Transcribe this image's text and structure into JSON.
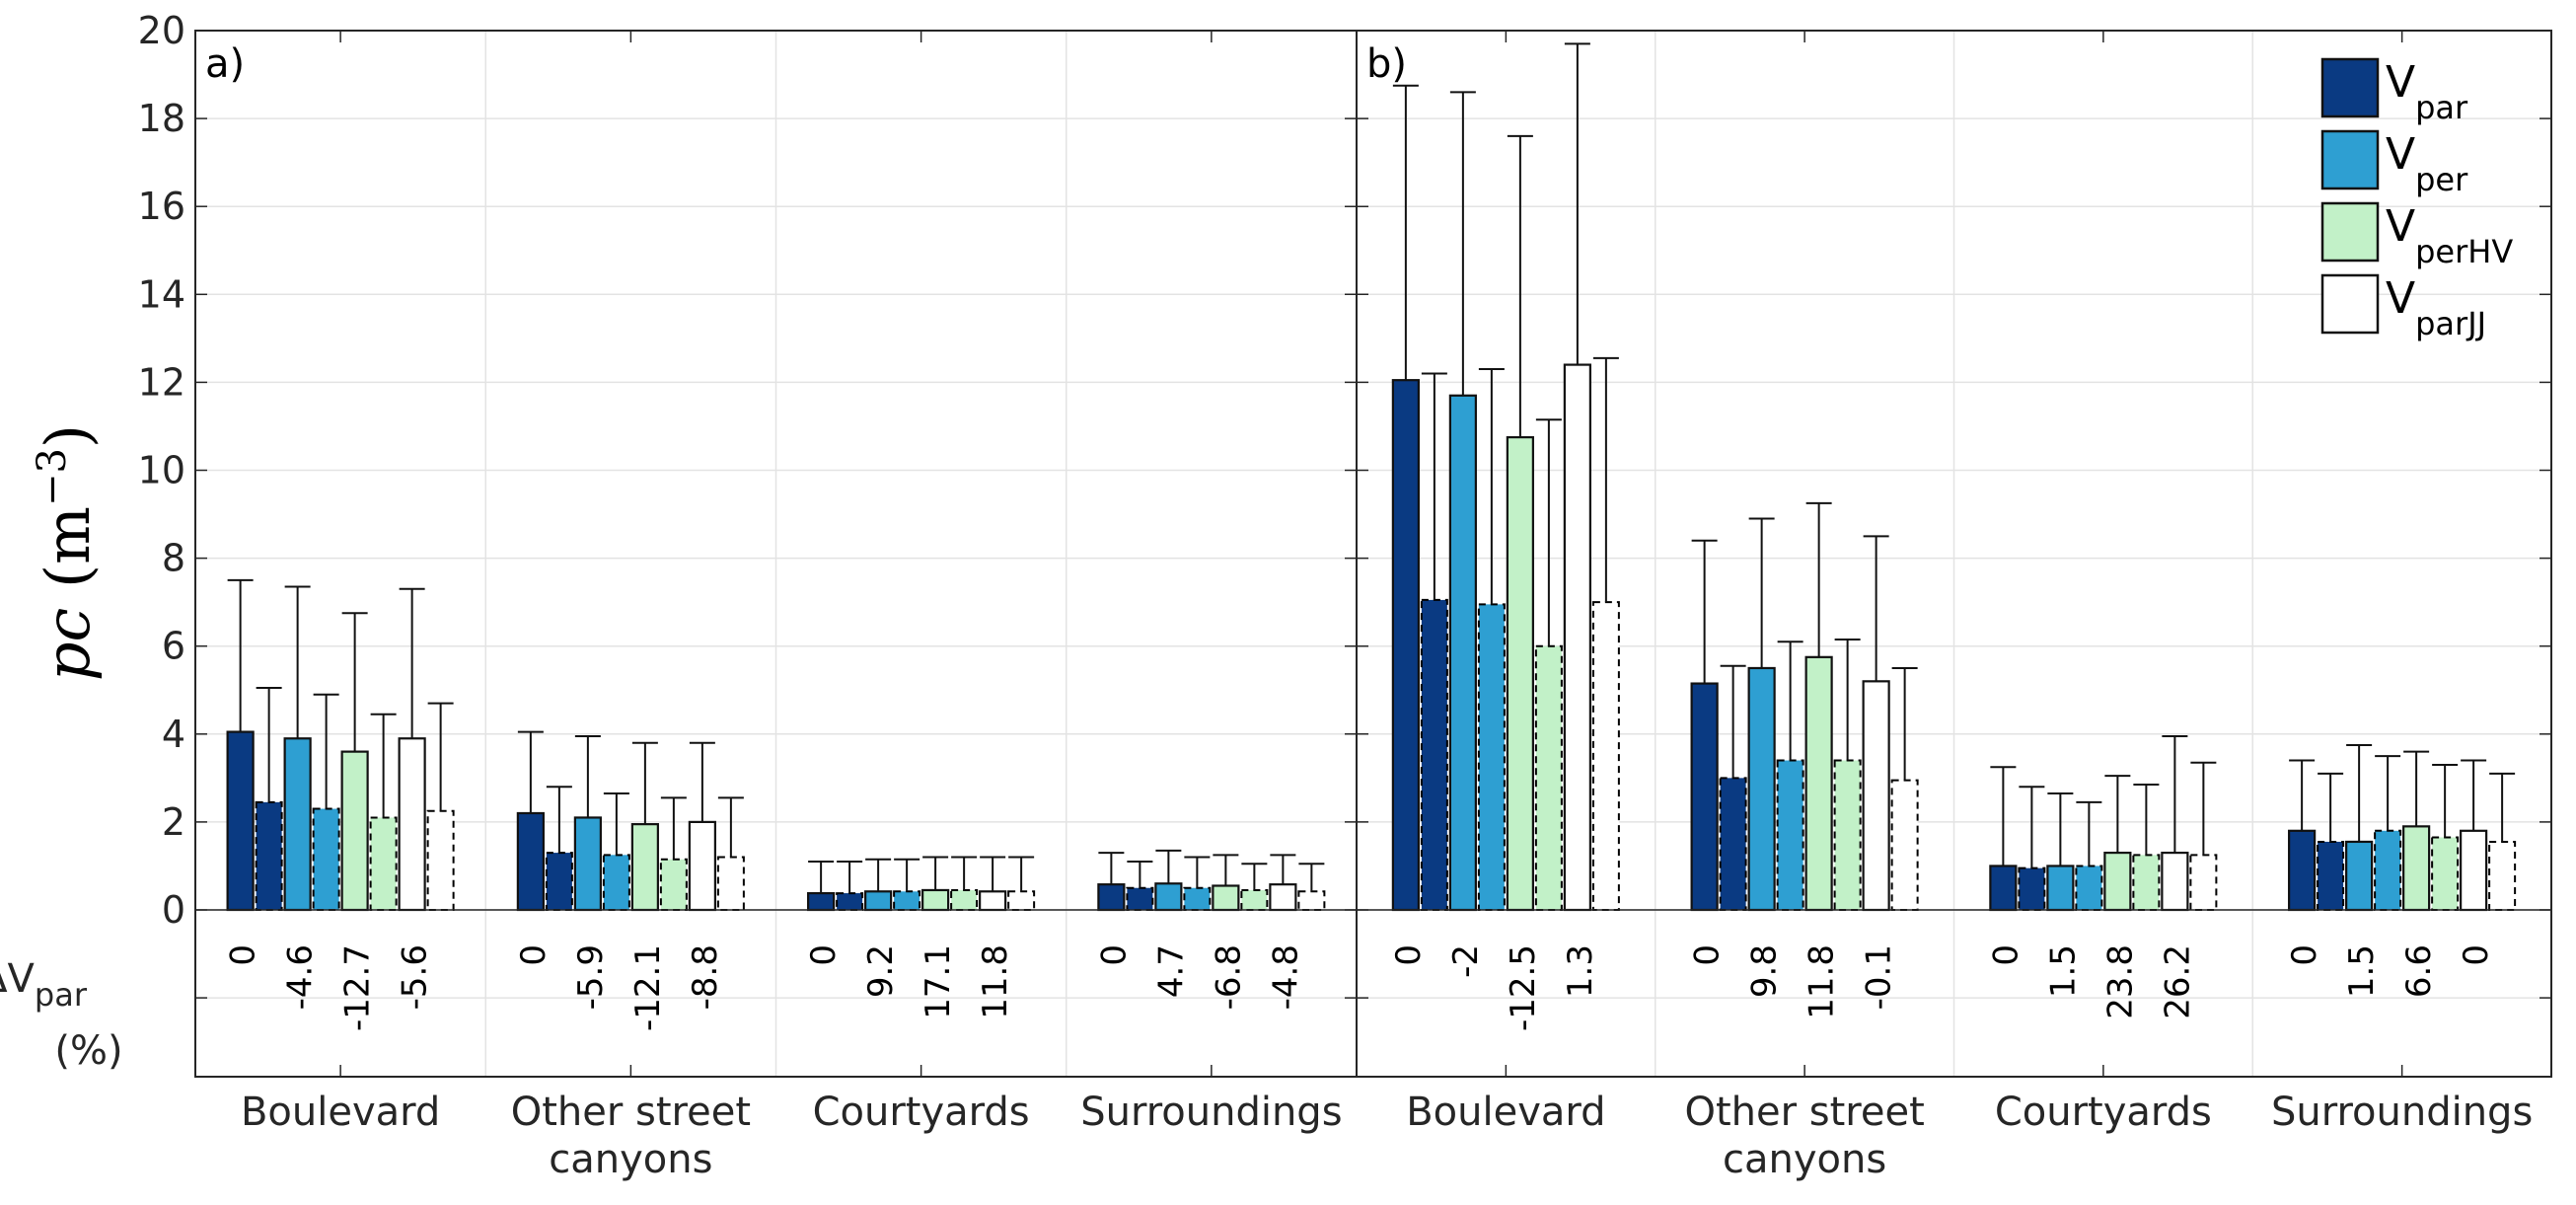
{
  "figure": {
    "ylabel_var": "pc",
    "ylabel_unit": "m",
    "ylabel_exp": "−3",
    "delta_label_main": "ΔV",
    "delta_label_sub": "par",
    "delta_label_units": "(%)"
  },
  "chart_data": {
    "type": "bar",
    "ylim": [
      0,
      20
    ],
    "yticks": [
      "0",
      "2",
      "4",
      "6",
      "8",
      "10",
      "12",
      "14",
      "16",
      "18",
      "20"
    ],
    "grid": true,
    "legend_placement": "top-right",
    "legend": [
      {
        "main": "V",
        "sub": "par",
        "color": "#0a3a82"
      },
      {
        "main": "V",
        "sub": "per",
        "color": "#2e9fd2"
      },
      {
        "main": "V",
        "sub": "perHV",
        "color": "#c2f1c8"
      },
      {
        "main": "V",
        "sub": "parJJ",
        "color": "#ffffff"
      }
    ],
    "series_colors": [
      "#0a3a82",
      "#2e9fd2",
      "#c2f1c8",
      "#ffffff"
    ],
    "bar_styles": [
      "solid",
      "dashed",
      "solid",
      "dashed",
      "solid",
      "dashed",
      "solid",
      "dashed"
    ],
    "panels": [
      {
        "label": "a)",
        "categories": [
          {
            "lines": [
              "Boulevard"
            ],
            "values": [
              4.05,
              2.45,
              3.9,
              2.3,
              3.6,
              2.1,
              3.9,
              2.25
            ],
            "err_upper": [
              7.5,
              5.05,
              7.35,
              4.9,
              6.75,
              4.45,
              7.3,
              4.7
            ],
            "delta": [
              "0",
              "-4.6",
              "-12.7",
              "-5.6"
            ]
          },
          {
            "lines": [
              "Other street",
              "canyons"
            ],
            "values": [
              2.2,
              1.3,
              2.1,
              1.25,
              1.95,
              1.15,
              2.0,
              1.2
            ],
            "err_upper": [
              4.05,
              2.8,
              3.95,
              2.65,
              3.8,
              2.55,
              3.8,
              2.55
            ],
            "delta": [
              "0",
              "-5.9",
              "-12.1",
              "-8.8"
            ]
          },
          {
            "lines": [
              "Courtyards"
            ],
            "values": [
              0.38,
              0.38,
              0.42,
              0.42,
              0.45,
              0.45,
              0.42,
              0.42
            ],
            "err_upper": [
              1.1,
              1.1,
              1.15,
              1.15,
              1.2,
              1.2,
              1.2,
              1.2
            ],
            "delta": [
              "0",
              "9.2",
              "17.1",
              "11.8"
            ]
          },
          {
            "lines": [
              "Surroundings"
            ],
            "values": [
              0.58,
              0.5,
              0.6,
              0.5,
              0.55,
              0.45,
              0.58,
              0.42
            ],
            "err_upper": [
              1.3,
              1.1,
              1.35,
              1.2,
              1.25,
              1.05,
              1.25,
              1.05
            ],
            "delta": [
              "0",
              "4.7",
              "-6.8",
              "-4.8"
            ]
          }
        ]
      },
      {
        "label": "b)",
        "categories": [
          {
            "lines": [
              "Boulevard"
            ],
            "values": [
              12.05,
              7.05,
              11.7,
              6.95,
              10.75,
              6.0,
              12.4,
              7.0
            ],
            "err_upper": [
              18.75,
              12.2,
              18.6,
              12.3,
              17.6,
              11.15,
              19.7,
              12.55
            ],
            "delta": [
              "0",
              "-2",
              "-12.5",
              "1.3"
            ]
          },
          {
            "lines": [
              "Other street",
              "canyons"
            ],
            "values": [
              5.15,
              3.0,
              5.5,
              3.4,
              5.75,
              3.4,
              5.2,
              2.95
            ],
            "err_upper": [
              8.4,
              5.55,
              8.9,
              6.1,
              9.25,
              6.15,
              8.5,
              5.5
            ],
            "delta": [
              "0",
              "9.8",
              "11.8",
              "-0.1"
            ]
          },
          {
            "lines": [
              "Courtyards"
            ],
            "values": [
              1.0,
              0.95,
              1.0,
              1.0,
              1.3,
              1.25,
              1.3,
              1.25
            ],
            "err_upper": [
              3.25,
              2.8,
              2.65,
              2.45,
              3.05,
              2.85,
              3.95,
              3.35
            ],
            "delta": [
              "0",
              "1.5",
              "23.8",
              "26.2"
            ]
          },
          {
            "lines": [
              "Surroundings"
            ],
            "values": [
              1.8,
              1.55,
              1.55,
              1.8,
              1.9,
              1.65,
              1.8,
              1.55
            ],
            "err_upper": [
              3.4,
              3.1,
              3.75,
              3.5,
              3.6,
              3.3,
              3.4,
              3.1
            ],
            "delta": [
              "0",
              "1.5",
              "6.6",
              "0"
            ]
          }
        ]
      }
    ]
  }
}
